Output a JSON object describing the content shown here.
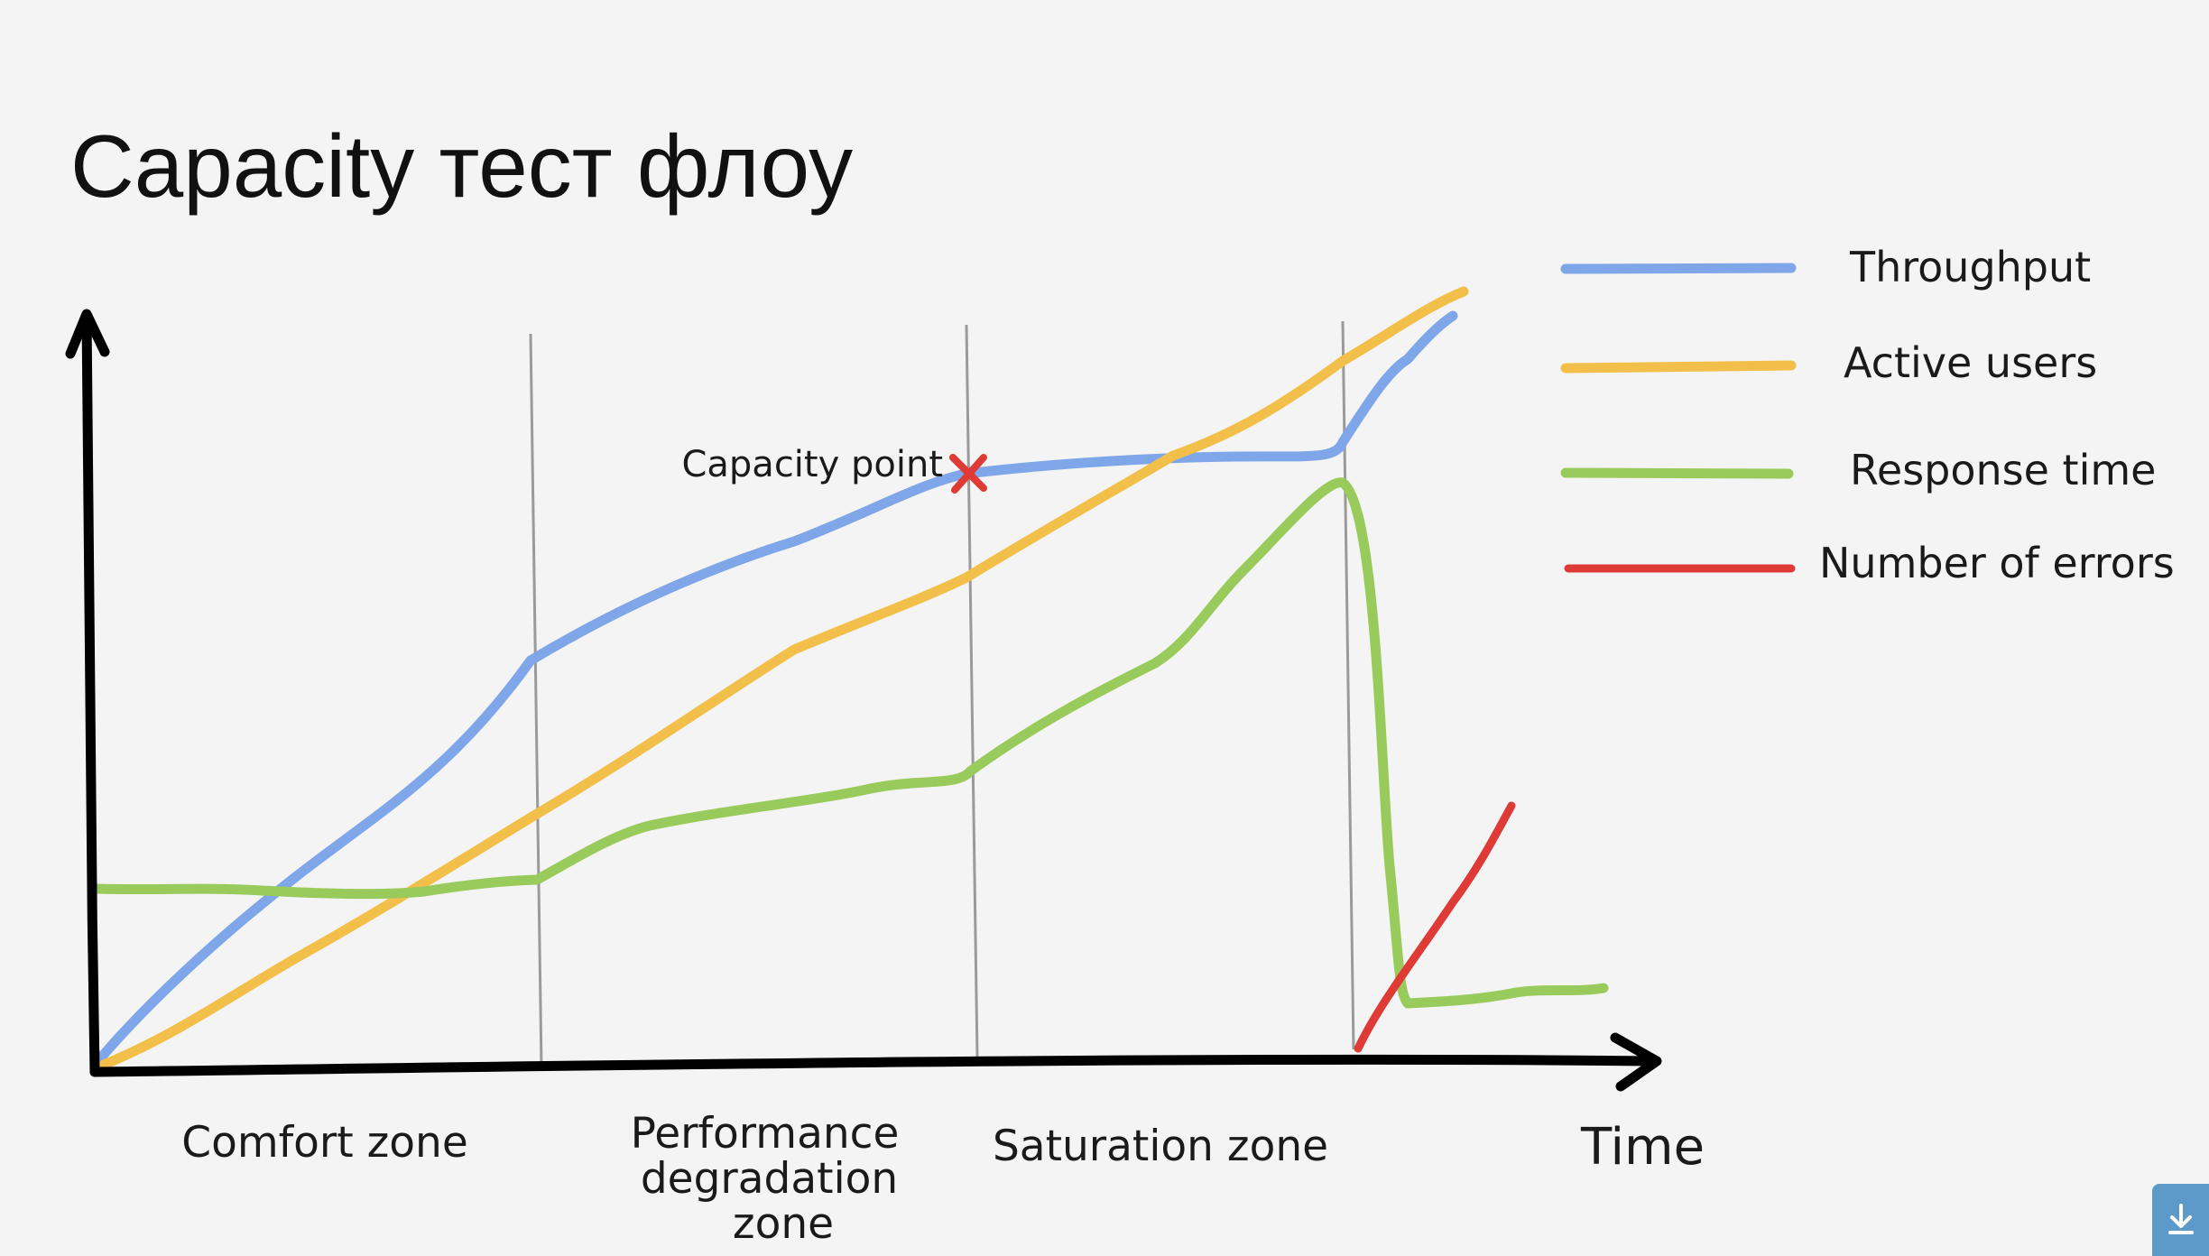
{
  "title": "Capacity тест флоу",
  "annotation": {
    "capacity_point": "Capacity point"
  },
  "axes": {
    "x_label": "Time"
  },
  "zones": [
    {
      "label_lines": [
        "Comfort zone"
      ]
    },
    {
      "label_lines": [
        "Performance",
        "degradation",
        "zone"
      ]
    },
    {
      "label_lines": [
        "Saturation zone"
      ]
    }
  ],
  "legend": [
    {
      "key": "throughput",
      "label": "Throughput",
      "color": "#7ea6e8"
    },
    {
      "key": "active_users",
      "label": "Active users",
      "color": "#f2c04a"
    },
    {
      "key": "response_time",
      "label": "Response time",
      "color": "#99cb5c"
    },
    {
      "key": "errors",
      "label": "Number of errors",
      "color": "#de3a36"
    }
  ],
  "colors": {
    "axis": "#000000",
    "zone_divider": "#9a9a9a",
    "capacity_marker": "#de3a36",
    "background": "#f4f4f4"
  },
  "icons": {
    "download": "download-icon"
  }
}
